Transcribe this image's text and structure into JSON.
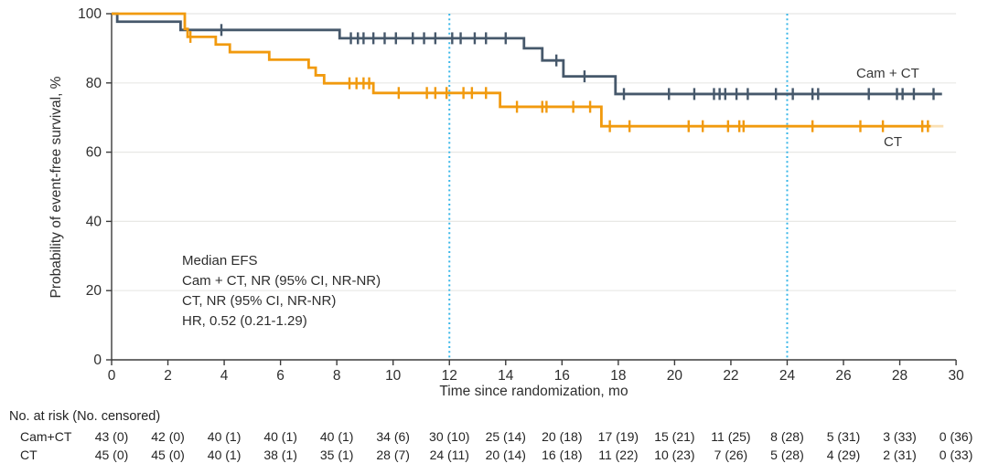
{
  "figure_type": "kaplan-meier-survival-plot",
  "chart_data": {
    "type": "line",
    "subtype": "kaplan-meier-step",
    "title": "",
    "xlabel": "Time since randomization, mo",
    "ylabel": "Probability of event-free survival, %",
    "xlim": [
      0,
      30
    ],
    "ylim": [
      0,
      100
    ],
    "xticks": [
      0,
      2,
      4,
      6,
      8,
      10,
      12,
      14,
      16,
      18,
      20,
      22,
      24,
      26,
      28,
      30
    ],
    "yticks": [
      0,
      20,
      40,
      60,
      80,
      100
    ],
    "grid": "horizontal",
    "reference_lines_x": [
      12,
      24
    ],
    "colors": {
      "cam_ct": "#46586B",
      "ct": "#F19A0E",
      "reference": "#38B6E8",
      "grid": "#E8E8E5",
      "axis": "#3B3B3B",
      "text": "#2E2E2E"
    },
    "annotation": [
      "Median EFS",
      "Cam + CT, NR (95% CI, NR-NR)",
      "CT, NR (95% CI, NR-NR)",
      "HR, 0.52 (0.21-1.29)"
    ],
    "series": [
      {
        "name": "Cam + CT",
        "color": "#46586B",
        "steps": [
          [
            0,
            100
          ],
          [
            0.2,
            97.7
          ],
          [
            2.45,
            95.3
          ],
          [
            8.1,
            92.9
          ],
          [
            14.65,
            90.0
          ],
          [
            15.3,
            86.5
          ],
          [
            16.05,
            81.9
          ],
          [
            17.9,
            76.8
          ]
        ],
        "end": 29.5,
        "censor_marks": [
          [
            3.9,
            95.3
          ],
          [
            8.5,
            92.9
          ],
          [
            8.75,
            92.9
          ],
          [
            8.95,
            92.9
          ],
          [
            9.3,
            92.9
          ],
          [
            9.7,
            92.9
          ],
          [
            10.1,
            92.9
          ],
          [
            10.7,
            92.9
          ],
          [
            11.1,
            92.9
          ],
          [
            11.5,
            92.9
          ],
          [
            12.1,
            92.9
          ],
          [
            12.4,
            92.9
          ],
          [
            12.9,
            92.9
          ],
          [
            13.3,
            92.9
          ],
          [
            14.0,
            92.9
          ],
          [
            15.8,
            86.5
          ],
          [
            16.8,
            81.9
          ],
          [
            18.2,
            76.8
          ],
          [
            19.8,
            76.8
          ],
          [
            20.7,
            76.8
          ],
          [
            21.4,
            76.8
          ],
          [
            21.6,
            76.8
          ],
          [
            21.8,
            76.8
          ],
          [
            22.2,
            76.8
          ],
          [
            22.6,
            76.8
          ],
          [
            23.6,
            76.8
          ],
          [
            24.2,
            76.8
          ],
          [
            24.9,
            76.8
          ],
          [
            25.1,
            76.8
          ],
          [
            26.9,
            76.8
          ],
          [
            27.9,
            76.8
          ],
          [
            28.1,
            76.8
          ],
          [
            28.5,
            76.8
          ],
          [
            29.2,
            76.8
          ]
        ]
      },
      {
        "name": "CT",
        "color": "#F19A0E",
        "steps": [
          [
            0,
            100
          ],
          [
            2.6,
            95.6
          ],
          [
            2.7,
            93.3
          ],
          [
            3.7,
            91.1
          ],
          [
            4.2,
            88.9
          ],
          [
            5.6,
            86.7
          ],
          [
            7.0,
            84.4
          ],
          [
            7.25,
            82.2
          ],
          [
            7.55,
            79.9
          ],
          [
            9.3,
            77.1
          ],
          [
            13.8,
            73.1
          ],
          [
            17.4,
            67.5
          ]
        ],
        "end": 29.1,
        "fade_to": 29.55,
        "censor_marks": [
          [
            2.8,
            93.3
          ],
          [
            8.45,
            79.9
          ],
          [
            8.7,
            79.9
          ],
          [
            8.95,
            79.9
          ],
          [
            9.15,
            79.9
          ],
          [
            10.2,
            77.1
          ],
          [
            11.2,
            77.1
          ],
          [
            11.5,
            77.1
          ],
          [
            11.9,
            77.1
          ],
          [
            12.5,
            77.1
          ],
          [
            12.8,
            77.1
          ],
          [
            13.3,
            77.1
          ],
          [
            14.4,
            73.1
          ],
          [
            15.3,
            73.1
          ],
          [
            15.45,
            73.1
          ],
          [
            16.4,
            73.1
          ],
          [
            17.0,
            73.1
          ],
          [
            17.7,
            67.5
          ],
          [
            18.4,
            67.5
          ],
          [
            20.5,
            67.5
          ],
          [
            21.0,
            67.5
          ],
          [
            21.9,
            67.5
          ],
          [
            22.3,
            67.5
          ],
          [
            22.45,
            67.5
          ],
          [
            24.9,
            67.5
          ],
          [
            26.6,
            67.5
          ],
          [
            27.4,
            67.5
          ],
          [
            28.8,
            67.5
          ],
          [
            29.0,
            67.5
          ]
        ]
      }
    ],
    "risk_table": {
      "header": "No. at risk (No. censored)",
      "time_points": [
        0,
        2,
        4,
        6,
        8,
        10,
        12,
        14,
        16,
        18,
        20,
        22,
        24,
        26,
        28,
        30
      ],
      "rows": [
        {
          "label": "Cam+CT",
          "values": [
            "43 (0)",
            "42 (0)",
            "40 (1)",
            "40 (1)",
            "40 (1)",
            "34 (6)",
            "30 (10)",
            "25 (14)",
            "20 (18)",
            "17 (19)",
            "15 (21)",
            "11 (25)",
            "8 (28)",
            "5 (31)",
            "3 (33)",
            "0 (36)"
          ]
        },
        {
          "label": "CT",
          "values": [
            "45 (0)",
            "45 (0)",
            "40 (1)",
            "38 (1)",
            "35 (1)",
            "28 (7)",
            "24 (11)",
            "20 (14)",
            "16 (18)",
            "11 (22)",
            "10 (23)",
            "7 (26)",
            "5 (28)",
            "4 (29)",
            "2 (31)",
            "0 (33)"
          ]
        }
      ]
    }
  }
}
